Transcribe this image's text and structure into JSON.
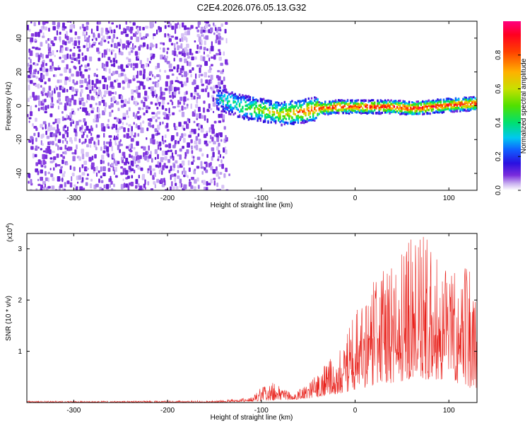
{
  "chart_data": [
    {
      "type": "heatmap",
      "title": "C2E4.2026.076.05.13.G32",
      "xlabel": "Height of straight line (km)",
      "ylabel": "Frequency (Hz)",
      "xlim": [
        -350,
        130
      ],
      "ylim": [
        -50,
        50
      ],
      "xticks": [
        -300,
        -200,
        -100,
        0,
        100
      ],
      "yticks": [
        -40,
        -20,
        0,
        20,
        40
      ],
      "noise_region_x": [
        -350,
        -135
      ],
      "signal_band": {
        "x": [
          -148,
          -120,
          -100,
          -80,
          -60,
          -40,
          -20,
          0,
          20,
          40,
          60,
          80,
          100,
          130
        ],
        "center_hz": [
          5,
          0,
          -2,
          -4,
          -3,
          -1,
          0,
          0,
          0,
          0,
          -1,
          0,
          1,
          2
        ]
      },
      "colorbar": {
        "label": "Normalized spectral amplitude",
        "range": [
          0,
          1
        ],
        "ticks": [
          0.0,
          0.2,
          0.4,
          0.6,
          0.8
        ]
      }
    },
    {
      "type": "line",
      "xlabel": "Height of straight line (km)",
      "ylabel": "SNR (10 * v/v)",
      "scale_label": "(x10",
      "scale_exp": "4",
      "scale_close": ")",
      "xlim": [
        -350,
        130
      ],
      "ylim": [
        0,
        3.3
      ],
      "xticks": [
        -300,
        -200,
        -100,
        0,
        100
      ],
      "yticks": [
        1,
        2,
        3
      ],
      "series": [
        {
          "name": "SNR",
          "color": "#e8211b",
          "envelope": {
            "x": [
              -350,
              -250,
              -150,
              -110,
              -100,
              -85,
              -70,
              -50,
              -40,
              -25,
              -10,
              0,
              15,
              30,
              45,
              60,
              75,
              90,
              100,
              110,
              120,
              130
            ],
            "min": [
              0,
              0,
              0,
              0.02,
              0.03,
              0.04,
              0.05,
              0.08,
              0.1,
              0.15,
              0.2,
              0.25,
              0.3,
              0.35,
              0.4,
              0.45,
              0.45,
              0.45,
              0.4,
              0.35,
              0.3,
              0.25
            ],
            "max": [
              0.03,
              0.03,
              0.04,
              0.1,
              0.3,
              0.4,
              0.2,
              0.35,
              0.6,
              0.9,
              1.4,
              1.8,
              2.3,
              2.6,
              2.9,
              3.2,
              3.3,
              2.7,
              2.6,
              2.5,
              2.7,
              2.3
            ]
          }
        }
      ]
    }
  ]
}
